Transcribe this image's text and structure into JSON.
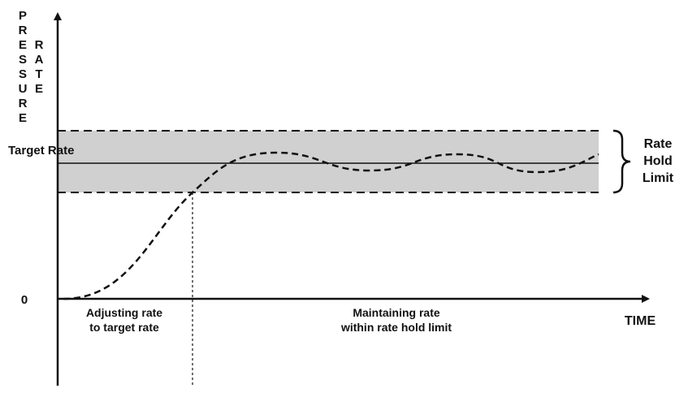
{
  "y_axis": {
    "label_pressure": "PRESSURE",
    "label_rate": "RATE"
  },
  "x_axis": {
    "label": "TIME",
    "origin_label": "0"
  },
  "target_rate_label": "Target Rate",
  "rate_hold_limit": {
    "lines": [
      "Rate",
      "Hold",
      "Limit"
    ]
  },
  "phases": [
    {
      "lines": [
        "Adjusting rate",
        "to target rate"
      ]
    },
    {
      "lines": [
        "Maintaining rate",
        "within rate hold limit"
      ]
    }
  ],
  "colors": {
    "band_fill": "#d0d0d0",
    "line": "#111111"
  }
}
